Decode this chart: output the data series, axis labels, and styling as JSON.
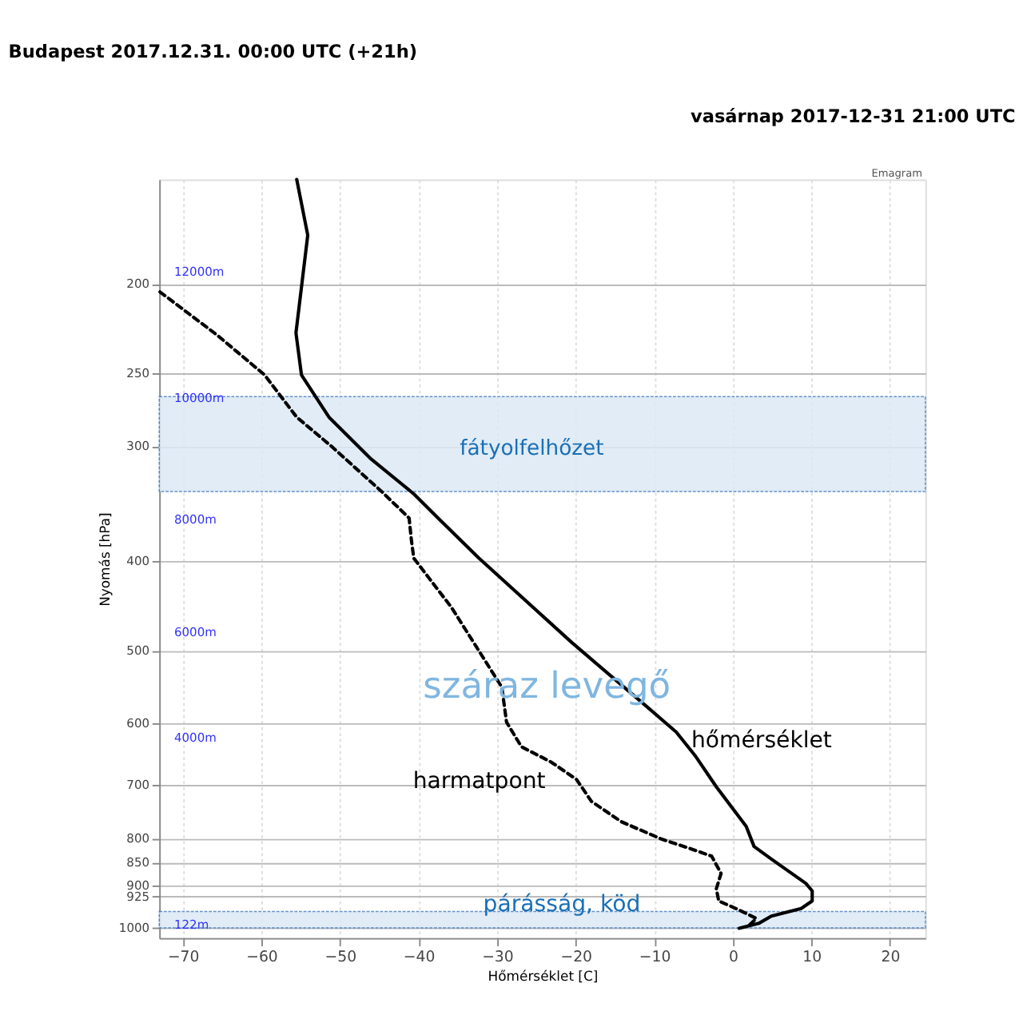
{
  "chart_data": {
    "type": "line",
    "title": "Budapest 2017.12.31. 00:00 UTC (+21h)",
    "subtitle": "vasárnap 2017-12-31 21:00 UTC",
    "xlabel": "Hőmérséklet [C]",
    "ylabel": "Nyomás [hPa]",
    "xlim": [
      -73,
      24.5
    ],
    "xticks": [
      -70,
      -60,
      -50,
      -40,
      -30,
      -20,
      -10,
      0,
      10,
      20
    ],
    "ylim": [
      1026,
      154
    ],
    "yticks": [
      200,
      250,
      300,
      400,
      500,
      600,
      700,
      800,
      850,
      900,
      925,
      1000
    ],
    "log": "y",
    "grid": true,
    "series": [
      {
        "color": "#000000",
        "line_style": "solid",
        "x": [
          -55.5,
          -54.1,
          -55.6,
          -54.9,
          -51.4,
          -46.0,
          -40.6,
          -37.1,
          -32.3,
          -20.5,
          -11.6,
          -7.2,
          -4.7,
          -2.1,
          1.7,
          2.7,
          4.9,
          9.3,
          10.1,
          10.1,
          8.7,
          4.9,
          3.3,
          0.8
        ],
        "values": [
          154,
          177,
          226,
          251,
          279,
          310,
          338,
          362,
          397,
          490,
          569,
          613,
          652,
          703,
          776,
          816,
          842,
          895,
          912,
          935,
          953,
          971,
          989,
          1001
        ]
      },
      {
        "color": "#000000",
        "line_style": "dashed",
        "x": [
          -72.9,
          -65.7,
          -59.6,
          -55.5,
          -51.1,
          -44.7,
          -41.2,
          -40.9,
          -40.6,
          -35.8,
          -32.6,
          -29.4,
          -28.8,
          -26.9,
          -23.1,
          -19.9,
          -18.0,
          -14.2,
          -9.1,
          -5.3,
          -2.7,
          -1.5,
          -2.1,
          -1.8,
          0.4,
          3.0,
          2.0
        ],
        "values": [
          204,
          227,
          251,
          279,
          300,
          336,
          359,
          380,
          397,
          449,
          496,
          548,
          598,
          636,
          661,
          690,
          729,
          767,
          801,
          821,
          836,
          873,
          907,
          935,
          953,
          977,
          995
        ]
      }
    ],
    "bands": [
      {
        "axis": "y",
        "from": 265,
        "to": 336,
        "color": "#dce9f5"
      },
      {
        "axis": "y",
        "from": 960,
        "to": 1000,
        "color": "#dce9f5"
      }
    ],
    "annotations": [
      "fátyolfelhőzet",
      "párásság, köd",
      "száraz levegő",
      "hőmérséklet",
      "harmatpont",
      "Emagram",
      "12000m",
      "10000m",
      "8000m",
      "6000m",
      "4000m",
      "122m"
    ]
  }
}
